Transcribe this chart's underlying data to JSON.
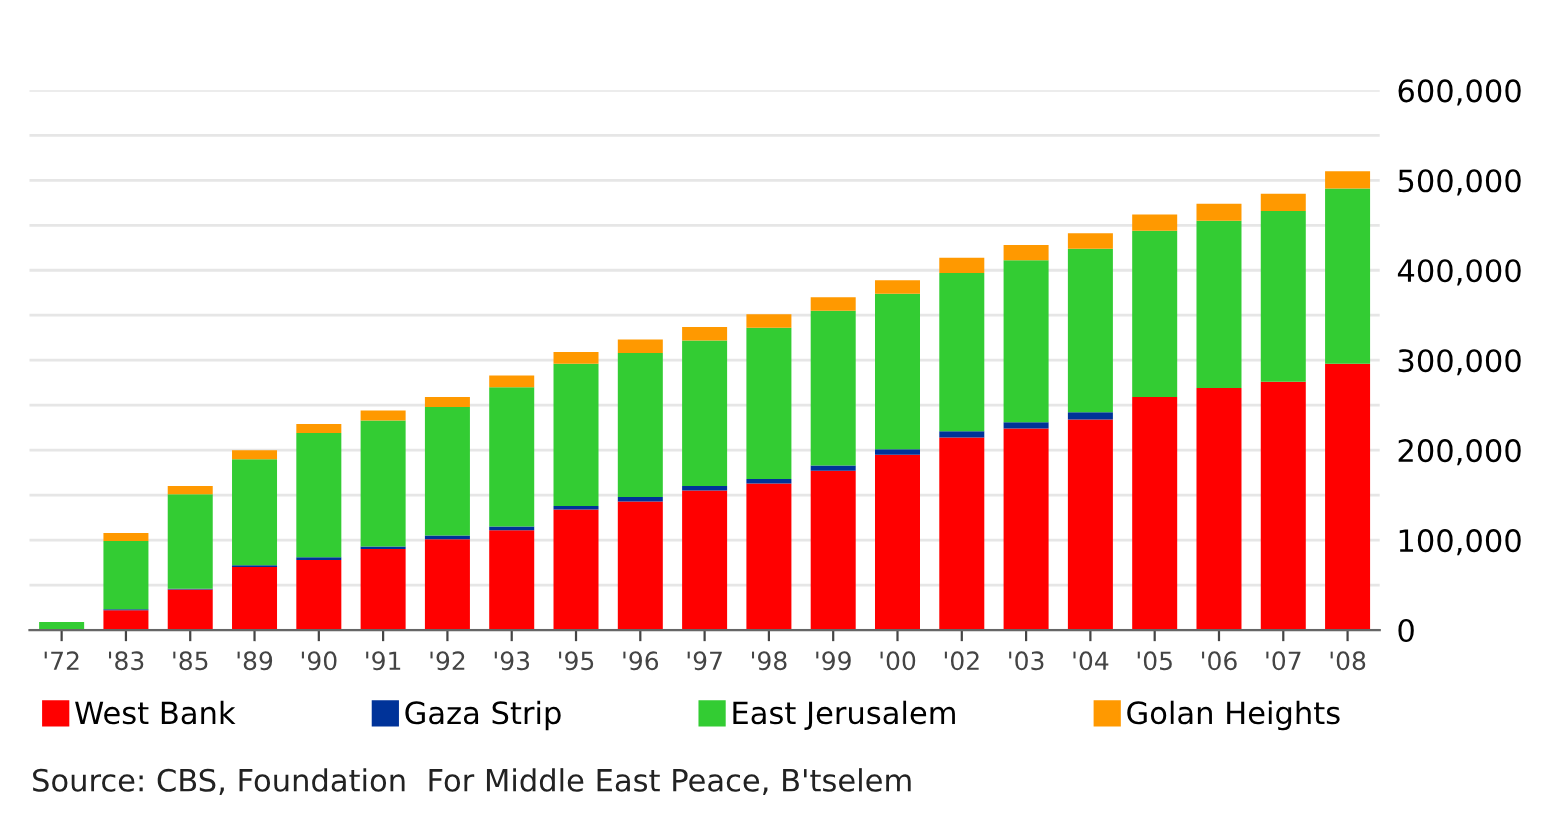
{
  "chart_data": {
    "type": "bar",
    "stacked": true,
    "categories": [
      "'72",
      "'83",
      "'85",
      "'89",
      "'90",
      "'91",
      "'92",
      "'93",
      "'95",
      "'96",
      "'97",
      "'98",
      "'99",
      "'00",
      "'02",
      "'03",
      "'04",
      "'05",
      "'06",
      "'07",
      "'08"
    ],
    "series": [
      {
        "name": "West Bank",
        "color": "#ff0000",
        "values": [
          0,
          22000,
          45000,
          70000,
          78000,
          90000,
          101000,
          111000,
          134000,
          143000,
          155000,
          163000,
          177000,
          195000,
          214000,
          224000,
          234000,
          259000,
          269000,
          276000,
          296000
        ]
      },
      {
        "name": "Gaza Strip",
        "color": "#003399",
        "values": [
          0,
          1000,
          1000,
          2000,
          3000,
          3000,
          4000,
          4000,
          4000,
          5000,
          5000,
          5000,
          6000,
          6000,
          7000,
          7000,
          8000,
          0,
          0,
          0,
          0
        ]
      },
      {
        "name": "East Jerusalem",
        "color": "#33cc33",
        "values": [
          9000,
          76000,
          105000,
          118000,
          138000,
          140000,
          143000,
          155000,
          158000,
          160000,
          162000,
          168000,
          172000,
          173000,
          176000,
          180000,
          182000,
          185000,
          186000,
          190000,
          195000
        ]
      },
      {
        "name": "Golan Heights",
        "color": "#ff9900",
        "values": [
          0,
          9000,
          9000,
          10000,
          10000,
          11000,
          11000,
          13000,
          13000,
          15000,
          15000,
          15000,
          15000,
          15000,
          17000,
          17000,
          17000,
          18000,
          19000,
          19000,
          19000
        ]
      }
    ],
    "ylim": [
      0,
      600000
    ],
    "yticks": [
      0,
      {
        "value": 50000,
        "label": null
      },
      {
        "value": 100000,
        "label": "100,000"
      },
      {
        "value": 150000,
        "label": null
      },
      {
        "value": 200000,
        "label": "200,000"
      },
      {
        "value": 250000,
        "label": null
      },
      {
        "value": 300000,
        "label": "300,000"
      },
      {
        "value": 350000,
        "label": null
      },
      {
        "value": 400000,
        "label": "400,000"
      },
      {
        "value": 450000,
        "label": null
      },
      {
        "value": 500000,
        "label": "500,000"
      },
      {
        "value": 550000,
        "label": null
      },
      {
        "value": 600000,
        "label": "600,000"
      }
    ],
    "grid": "y",
    "legend": "bottom",
    "annotations": [
      "Source: CBS, Foundation  For Middle East Peace, B'tselem"
    ]
  }
}
